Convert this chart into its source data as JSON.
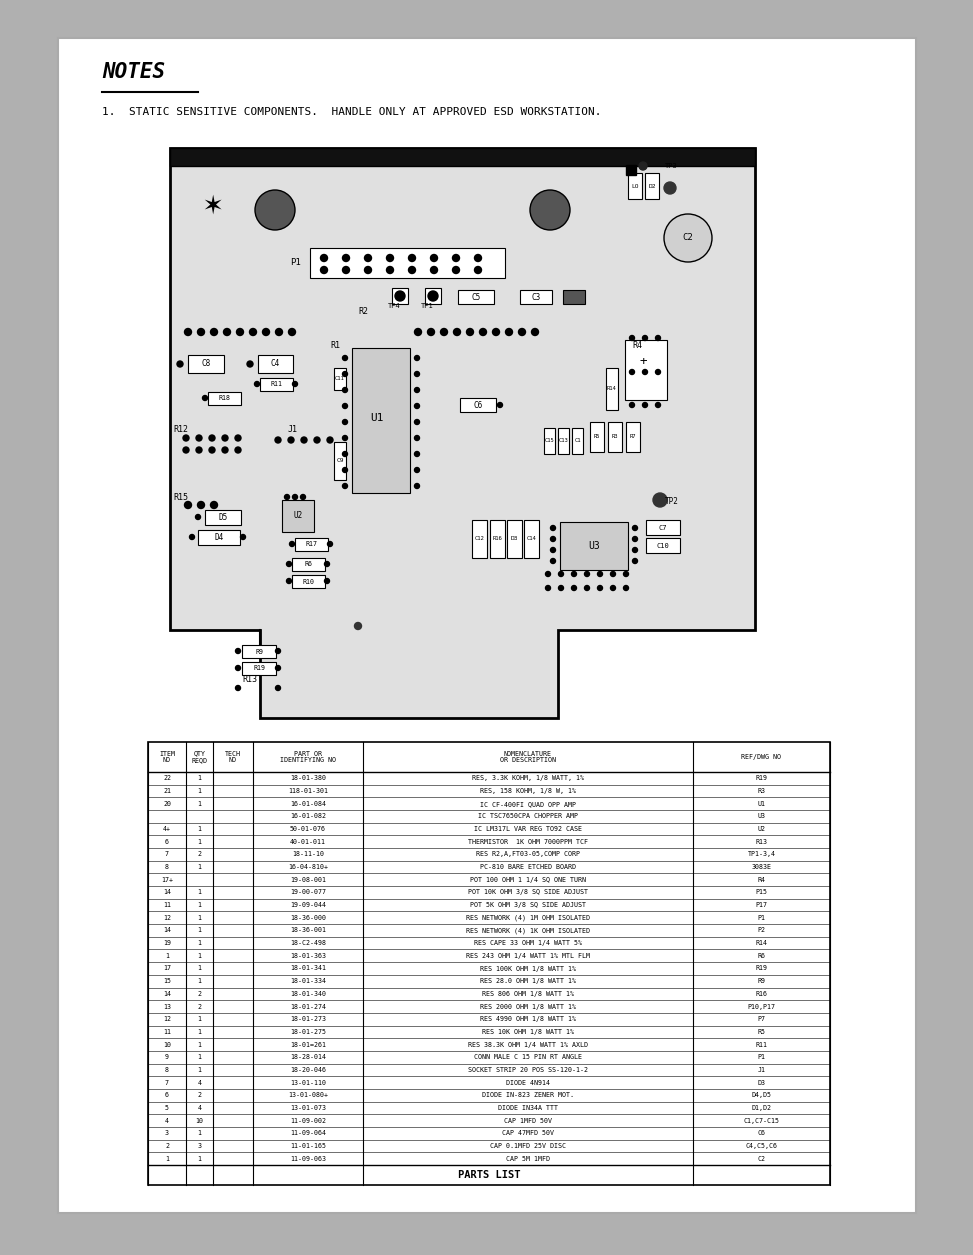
{
  "page_bg": "#b0b0b0",
  "content_bg": "#ffffff",
  "title_text": "NOTES",
  "note_text": "1.  STATIC SENSITIVE COMPONENTS.  HANDLE ONLY AT APPROVED ESD WORKSTATION.",
  "parts_title": "PARTS LIST",
  "col_headers": [
    "ITEM\nNO",
    "QTY\nREQD",
    "TECH\nNO",
    "PART OR\nIDENTIFYING NO",
    "NOMENCLATURE\nOR DESCRIPTION",
    "REF/DWG NO"
  ],
  "rows": [
    [
      "22",
      "1",
      "",
      "18-01-380",
      "RES, 3.3K KOHM, 1/8 WATT, 1%",
      "R19"
    ],
    [
      "21",
      "1",
      "",
      "118-01-301",
      "RES, 158 KOHM, 1/8 W, 1%",
      "R3"
    ],
    [
      "20",
      "1",
      "",
      "16-01-084",
      "IC CF-400FI QUAD OPP AMP",
      "U1"
    ],
    [
      "",
      "",
      "",
      "16-01-082",
      "IC TSC7650CPA CHOPPER AMP",
      "U3"
    ],
    [
      "4+",
      "1",
      "",
      "50-01-076",
      "IC LM317L VAR REG TO92 CASE",
      "U2"
    ],
    [
      "6",
      "1",
      "",
      "40-01-011",
      "THERMISTOR  1K OHM 7000PPM TCF",
      "R13"
    ],
    [
      "7",
      "2",
      "",
      "18-11-10",
      "RES R2,A,FT03-05,COMP CORP",
      "TP1-3,4"
    ],
    [
      "8",
      "1",
      "",
      "16-04-810+",
      "PC-810 BARE ETCHED BOARD",
      "3083E"
    ],
    [
      "17+",
      "",
      "",
      "19-08-001",
      "POT 100 OHM 1 1/4 SQ ONE TURN",
      "R4"
    ],
    [
      "14",
      "1",
      "",
      "19-00-077",
      "POT 10K OHM 3/8 SQ SIDE ADJUST",
      "P15"
    ],
    [
      "11",
      "1",
      "",
      "19-09-044",
      "POT 5K OHM 3/8 SQ SIDE ADJUST",
      "P17"
    ],
    [
      "12",
      "1",
      "",
      "18-36-000",
      "RES NETWORK (4) 1M OHM ISOLATED",
      "P1"
    ],
    [
      "14",
      "1",
      "",
      "18-36-001",
      "RES NETWORK (4) 1K OHM ISOLATED",
      "P2"
    ],
    [
      "19",
      "1",
      "",
      "18-C2-498",
      "RES CAPE 33 OHM 1/4 WATT 5%",
      "R14"
    ],
    [
      "1",
      "1",
      "",
      "18-01-363",
      "RES 243 OHM 1/4 WATT 1% MTL FLM",
      "R6"
    ],
    [
      "17",
      "1",
      "",
      "18-01-341",
      "RES 100K OHM 1/8 WATT 1%",
      "R19"
    ],
    [
      "15",
      "1",
      "",
      "18-01-334",
      "RES 28.0 OHM 1/8 WATT 1%",
      "R9"
    ],
    [
      "14",
      "2",
      "",
      "18-01-340",
      "RES 806 OHM 1/8 WATT 1%",
      "R16"
    ],
    [
      "13",
      "2",
      "",
      "18-01-274",
      "RES 2000 OHM 1/8 WATT 1%",
      "P10,P17"
    ],
    [
      "12",
      "1",
      "",
      "18-01-273",
      "RES 4990 OHM 1/8 WATT 1%",
      "P7"
    ],
    [
      "11",
      "1",
      "",
      "18-01-275",
      "RES 10K OHM 1/8 WATT 1%",
      "R5"
    ],
    [
      "10",
      "1",
      "",
      "18-01=261",
      "RES 38.3K OHM 1/4 WATT 1% AXLD",
      "R11"
    ],
    [
      "9",
      "1",
      "",
      "18-28-014",
      "CONN MALE C 15 PIN RT ANGLE",
      "P1"
    ],
    [
      "8",
      "1",
      "",
      "18-20-046",
      "SOCKET STRIP 20 POS SS-120-1-2",
      "J1"
    ],
    [
      "7",
      "4",
      "",
      "13-01-110",
      "DIODE 4N914",
      "D3"
    ],
    [
      "6",
      "2",
      "",
      "13-01-080+",
      "DIODE IN-823 ZENER MOT.",
      "D4,D5"
    ],
    [
      "5",
      "4",
      "",
      "13-01-073",
      "DIODE IN34A TTT",
      "D1,D2"
    ],
    [
      "4",
      "10",
      "",
      "11-09-002",
      "CAP 1MFD 50V",
      "C1,C7-C15"
    ],
    [
      "3",
      "1",
      "",
      "11-09-064",
      "CAP 47MFD 50V",
      "C6"
    ],
    [
      "2",
      "3",
      "",
      "11-01-165",
      "CAP 0.1MFD 25V DISC",
      "C4,C5,C6"
    ],
    [
      "1",
      "1",
      "",
      "11-09-063",
      "CAP 5M 1MFD",
      "C2"
    ]
  ]
}
